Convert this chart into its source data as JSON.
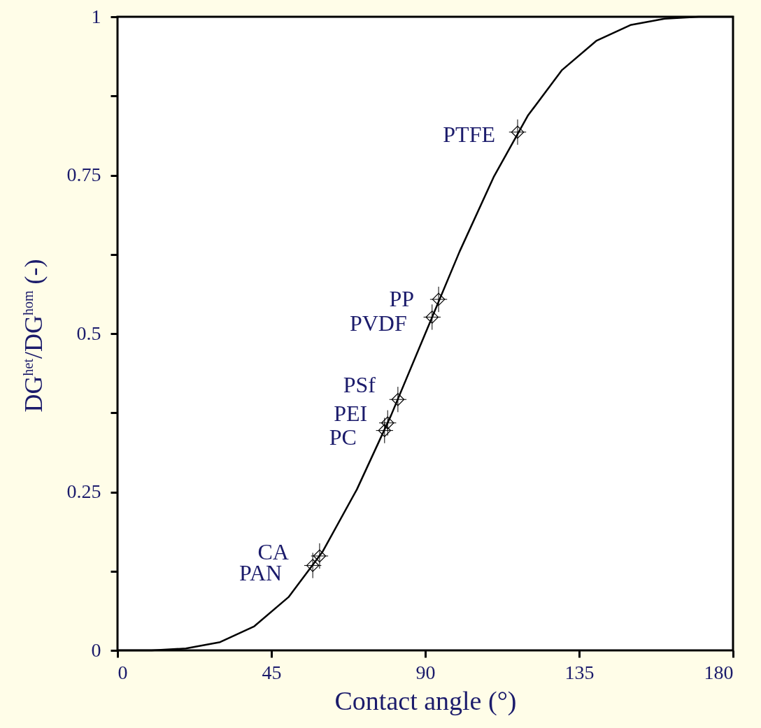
{
  "chart_data": {
    "type": "line",
    "xlabel": "Contact angle (°)",
    "ylabel": "DG$^{het}$/DG$^{hom}$ (-)",
    "xlim": [
      0,
      180
    ],
    "xticks": [
      0,
      45,
      90,
      135,
      180
    ],
    "ylim": [
      0,
      1
    ],
    "yticks": [
      0,
      {
        "value": 0.125,
        "label": null
      },
      0.25,
      {
        "value": 0.375,
        "label": null
      },
      0.5,
      {
        "value": 0.625,
        "label": null
      },
      0.75,
      {
        "value": 0.875,
        "label": null
      },
      1
    ],
    "grid": false,
    "series": [
      {
        "color": "#000000",
        "marker": "none",
        "x": [
          0,
          10,
          20,
          30,
          40,
          50,
          60,
          70,
          80,
          90,
          100,
          110,
          120,
          130,
          140,
          150,
          160,
          170,
          180
        ],
        "values": [
          0,
          0,
          0.003,
          0.013,
          0.038,
          0.084,
          0.156,
          0.254,
          0.371,
          0.5,
          0.629,
          0.747,
          0.844,
          0.916,
          0.962,
          0.987,
          0.997,
          1,
          1
        ]
      },
      {
        "type": "scatter",
        "color": "#000000",
        "marker": "diamond",
        "x": [
          117,
          93.9,
          92,
          82,
          79,
          78.1,
          59.1,
          57.1
        ],
        "values": [
          0.818,
          0.554,
          0.526,
          0.396,
          0.359,
          0.347,
          0.149,
          0.134
        ],
        "errors": [
          0.02,
          0.02,
          0.02,
          0.02,
          0.02,
          0.02,
          0.02,
          0.02
        ],
        "xerrors": [
          2.5,
          2.5,
          2.5,
          2.5,
          2.5,
          2.5,
          2.5,
          2.5
        ]
      }
    ],
    "annotations": [
      {
        "text": "PTFE",
        "x": 117,
        "y": 0.818
      },
      {
        "text": "PP",
        "x": 93.9,
        "y": 0.554
      },
      {
        "text": "PVDF",
        "x": 92,
        "y": 0.526
      },
      {
        "text": "PSf",
        "x": 82,
        "y": 0.396
      },
      {
        "text": "PEI",
        "x": 79,
        "y": 0.359
      },
      {
        "text": "PC",
        "x": 78.1,
        "y": 0.347
      },
      {
        "text": "CA",
        "x": 59.1,
        "y": 0.149
      },
      {
        "text": "PAN",
        "x": 57.1,
        "y": 0.134
      }
    ]
  }
}
